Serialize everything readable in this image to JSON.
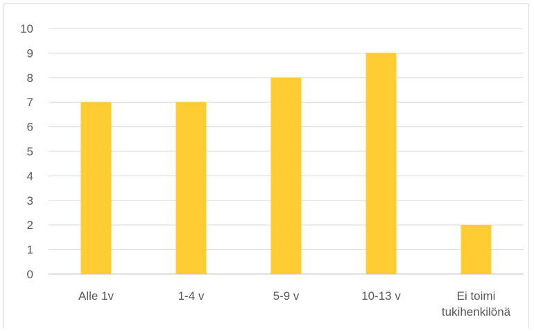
{
  "chart_data": {
    "type": "bar",
    "title": "",
    "xlabel": "",
    "ylabel": "",
    "categories": [
      [
        "Alle 1v"
      ],
      [
        "1-4 v"
      ],
      [
        "5-9 v"
      ],
      [
        "10-13 v"
      ],
      [
        "Ei toimi",
        "tukihenkilönä"
      ]
    ],
    "values": [
      7,
      7,
      8,
      9,
      2
    ],
    "ylim": [
      0,
      10
    ],
    "yticks": [
      0,
      1,
      2,
      3,
      4,
      5,
      6,
      7,
      8,
      9,
      10
    ],
    "grid": true,
    "legend": "none",
    "colors": {
      "bar": "#FFCC33",
      "grid": "#d9d9d9",
      "axis": "#bfbfbf",
      "text": "#595959"
    }
  }
}
